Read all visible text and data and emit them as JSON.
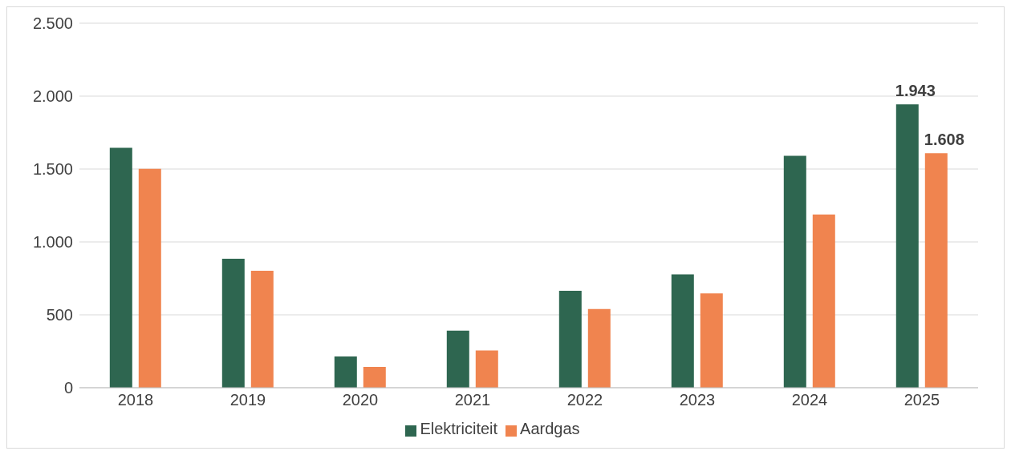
{
  "chart_data": {
    "type": "bar",
    "categories": [
      "2018",
      "2019",
      "2020",
      "2021",
      "2022",
      "2023",
      "2024",
      "2025"
    ],
    "series": [
      {
        "name": "Elektriciteit",
        "color": "#2e6650",
        "values": [
          1645,
          885,
          214,
          392,
          665,
          778,
          1591,
          1943
        ],
        "value_labels": [
          null,
          null,
          null,
          null,
          null,
          null,
          null,
          "1.943"
        ]
      },
      {
        "name": "Aardgas",
        "color": "#f0844f",
        "values": [
          1502,
          802,
          143,
          255,
          540,
          647,
          1188,
          1608
        ],
        "value_labels": [
          null,
          null,
          null,
          null,
          null,
          null,
          null,
          "1.608"
        ]
      }
    ],
    "ylim": [
      0,
      2500
    ],
    "yticks": [
      {
        "value": 0,
        "label": "0"
      },
      {
        "value": 500,
        "label": "500"
      },
      {
        "value": 1000,
        "label": "1.000"
      },
      {
        "value": 1500,
        "label": "1.500"
      },
      {
        "value": 2000,
        "label": "2.000"
      },
      {
        "value": 2500,
        "label": "2.500"
      }
    ],
    "grid": "y",
    "legend": "bottom"
  }
}
